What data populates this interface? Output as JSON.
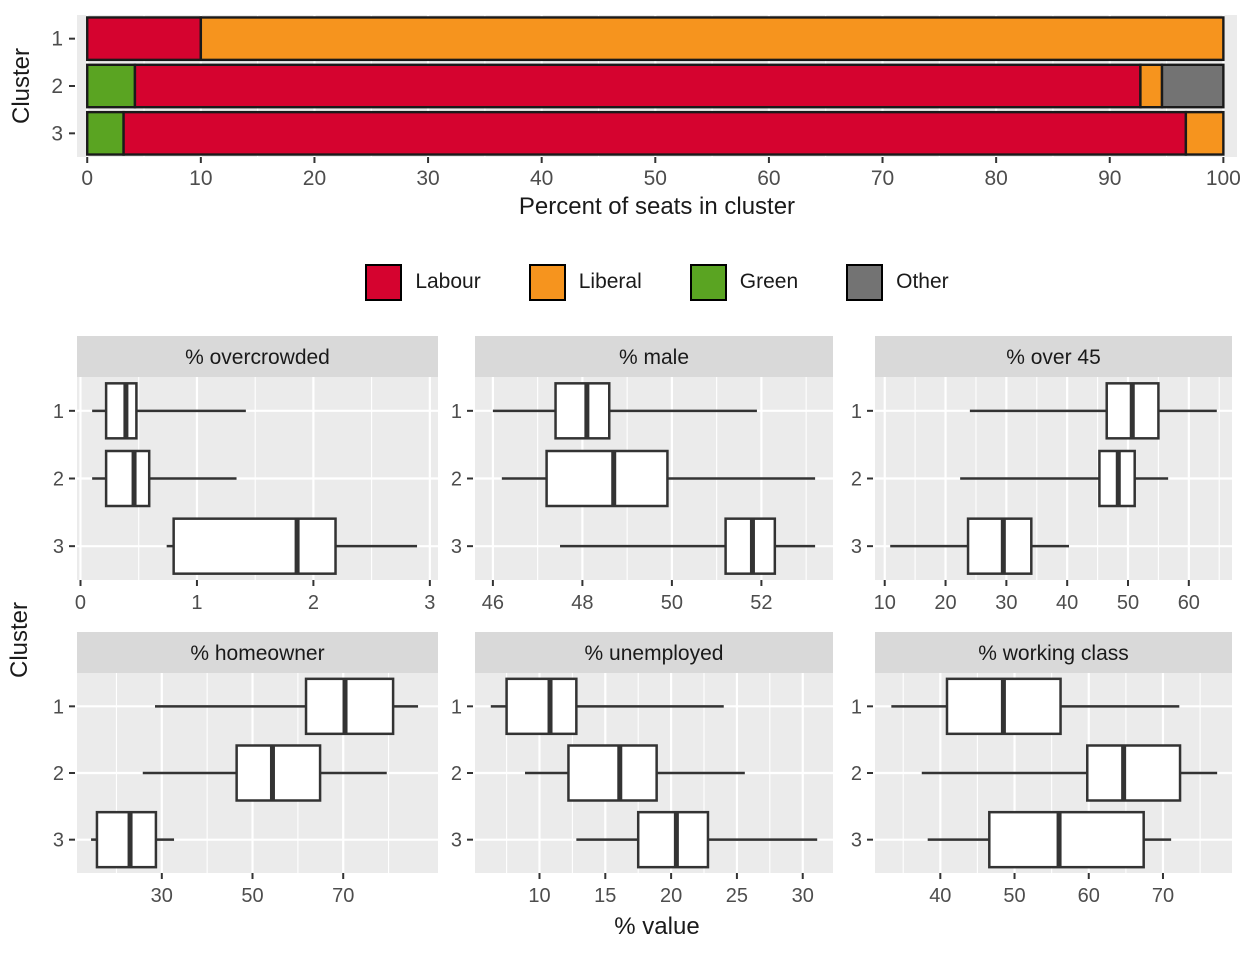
{
  "chart_data": [
    {
      "type": "bar",
      "orientation": "horizontal-stacked",
      "xlabel": "Percent of seats in cluster",
      "ylabel": "Cluster",
      "categories": [
        "1",
        "2",
        "3"
      ],
      "xlim": [
        0,
        100
      ],
      "x_major_ticks": [
        0,
        10,
        20,
        30,
        40,
        50,
        60,
        70,
        80,
        90,
        100
      ],
      "x_minor_ticks": [
        5,
        15,
        25,
        35,
        45,
        55,
        65,
        75,
        85,
        95
      ],
      "grid": true,
      "legend": {
        "position": "bottom",
        "entries": [
          {
            "label": "Labour",
            "color": "#D5032F"
          },
          {
            "label": "Liberal",
            "color": "#F6941E"
          },
          {
            "label": "Green",
            "color": "#5AA422"
          },
          {
            "label": "Other",
            "color": "#737373"
          }
        ]
      },
      "stacks": [
        {
          "cluster": "1",
          "segments": [
            {
              "party": "Labour",
              "value": 10.0
            },
            {
              "party": "Liberal",
              "value": 90.0
            }
          ]
        },
        {
          "cluster": "2",
          "segments": [
            {
              "party": "Green",
              "value": 4.2
            },
            {
              "party": "Labour",
              "value": 88.5
            },
            {
              "party": "Liberal",
              "value": 1.9
            },
            {
              "party": "Other",
              "value": 5.4
            }
          ]
        },
        {
          "cluster": "3",
          "segments": [
            {
              "party": "Green",
              "value": 3.2
            },
            {
              "party": "Labour",
              "value": 93.5
            },
            {
              "party": "Liberal",
              "value": 3.3
            }
          ]
        }
      ]
    },
    {
      "type": "boxplot",
      "layout": "facet-grid-2x3",
      "xlabel": "% value",
      "ylabel": "Cluster",
      "categories": [
        "1",
        "2",
        "3"
      ],
      "panels": [
        {
          "title": "% overcrowded",
          "xlim": [
            -0.03,
            3.07
          ],
          "major_ticks": [
            0,
            1,
            2,
            3
          ],
          "minor_ticks": [
            0.5,
            1.5,
            2.5
          ],
          "boxes": [
            {
              "cluster": "1",
              "min": 0.1,
              "q1": 0.22,
              "median": 0.39,
              "q3": 0.48,
              "max": 1.42
            },
            {
              "cluster": "2",
              "min": 0.1,
              "q1": 0.22,
              "median": 0.46,
              "q3": 0.59,
              "max": 1.34
            },
            {
              "cluster": "3",
              "min": 0.74,
              "q1": 0.8,
              "median": 1.86,
              "q3": 2.19,
              "max": 2.89
            }
          ]
        },
        {
          "title": "% male",
          "xlim": [
            45.6,
            53.6
          ],
          "major_ticks": [
            46,
            48,
            50,
            52
          ],
          "minor_ticks": [
            47,
            49,
            51,
            53
          ],
          "boxes": [
            {
              "cluster": "1",
              "min": 46.0,
              "q1": 47.4,
              "median": 48.1,
              "q3": 48.6,
              "max": 51.9
            },
            {
              "cluster": "2",
              "min": 46.2,
              "q1": 47.2,
              "median": 48.7,
              "q3": 49.9,
              "max": 53.2
            },
            {
              "cluster": "3",
              "min": 47.5,
              "q1": 51.2,
              "median": 51.8,
              "q3": 52.3,
              "max": 53.2
            }
          ]
        },
        {
          "title": "% over 45",
          "xlim": [
            8.4,
            67.1
          ],
          "major_ticks": [
            10,
            20,
            30,
            40,
            50,
            60
          ],
          "minor_ticks": [
            15,
            25,
            35,
            45,
            55,
            65
          ],
          "boxes": [
            {
              "cluster": "1",
              "min": 24.0,
              "q1": 46.5,
              "median": 50.7,
              "q3": 55.0,
              "max": 64.6
            },
            {
              "cluster": "2",
              "min": 22.4,
              "q1": 45.3,
              "median": 48.4,
              "q3": 51.1,
              "max": 56.6
            },
            {
              "cluster": "3",
              "min": 10.9,
              "q1": 23.7,
              "median": 29.5,
              "q3": 34.1,
              "max": 40.3
            }
          ]
        },
        {
          "title": "% homeowner",
          "xlim": [
            11.3,
            90.9
          ],
          "major_ticks": [
            30,
            50,
            70
          ],
          "minor_ticks": [
            20,
            40,
            60,
            80
          ],
          "boxes": [
            {
              "cluster": "1",
              "min": 28.5,
              "q1": 61.8,
              "median": 70.4,
              "q3": 81.0,
              "max": 86.5
            },
            {
              "cluster": "2",
              "min": 25.8,
              "q1": 46.5,
              "median": 54.4,
              "q3": 64.9,
              "max": 79.6
            },
            {
              "cluster": "3",
              "min": 14.4,
              "q1": 15.7,
              "median": 23.0,
              "q3": 28.7,
              "max": 32.7
            }
          ]
        },
        {
          "title": "% unemployed",
          "xlim": [
            5.1,
            32.3
          ],
          "major_ticks": [
            10,
            15,
            20,
            25,
            30
          ],
          "minor_ticks": [
            7.5,
            12.5,
            17.5,
            22.5,
            27.5
          ],
          "boxes": [
            {
              "cluster": "1",
              "min": 6.3,
              "q1": 7.5,
              "median": 10.8,
              "q3": 12.8,
              "max": 24.0
            },
            {
              "cluster": "2",
              "min": 8.9,
              "q1": 12.2,
              "median": 16.1,
              "q3": 18.9,
              "max": 25.6
            },
            {
              "cluster": "3",
              "min": 12.8,
              "q1": 17.5,
              "median": 20.4,
              "q3": 22.8,
              "max": 31.1
            }
          ]
        },
        {
          "title": "% working class",
          "xlim": [
            31.2,
            79.3
          ],
          "major_ticks": [
            40,
            50,
            60,
            70
          ],
          "minor_ticks": [
            35,
            45,
            55,
            65,
            75
          ],
          "boxes": [
            {
              "cluster": "1",
              "min": 33.4,
              "q1": 40.9,
              "median": 48.5,
              "q3": 56.2,
              "max": 72.2
            },
            {
              "cluster": "2",
              "min": 37.5,
              "q1": 59.8,
              "median": 64.7,
              "q3": 72.3,
              "max": 77.3
            },
            {
              "cluster": "3",
              "min": 38.3,
              "q1": 46.6,
              "median": 56.0,
              "q3": 67.4,
              "max": 71.1
            }
          ]
        }
      ]
    }
  ],
  "style": {
    "panel_bg": "#EBEBEB",
    "strip_bg": "#D9D9D9",
    "gridline": "#FFFFFF",
    "box_stroke": "#333333",
    "bar_stroke": "#1A1A1A",
    "tick_text": "#4D4D4D",
    "title_text": "#1A1A1A"
  }
}
